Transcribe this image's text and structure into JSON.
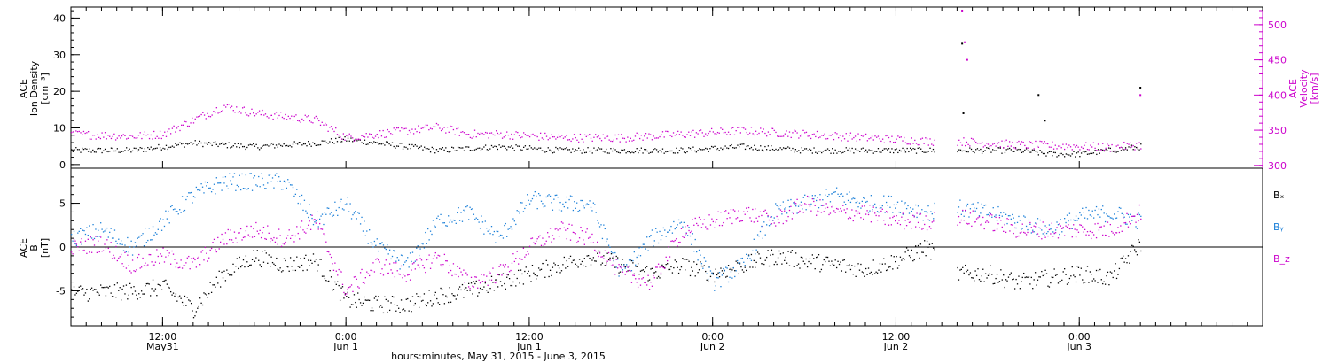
{
  "colors": {
    "frame": "#000000",
    "black_series": "#000000",
    "magenta_series": "#cc00cc",
    "blue_series": "#1a7fd8"
  },
  "chart_data": [
    {
      "type": "scatter",
      "panel": "top",
      "ylabel_left": [
        "ACE",
        "Ion Density",
        "[cm⁻³]"
      ],
      "ylabel_right": [
        "ACE",
        "Velocity",
        "[km/s]"
      ],
      "ylim_left": [
        -1,
        43
      ],
      "ylim_right": [
        296,
        525
      ],
      "yticks_left": [
        0,
        10,
        20,
        30,
        40
      ],
      "yticks_right": [
        300,
        350,
        400,
        450,
        500
      ],
      "series": [
        {
          "name": "",
          "axis": "left",
          "color": "black",
          "x": [
            "2015-05-31 06:00",
            "2015-05-31 10:00",
            "2015-05-31 14:00",
            "2015-05-31 18:00",
            "2015-05-31 22:00",
            "2015-06-01 00:00",
            "2015-06-01 02:00",
            "2015-06-01 06:00",
            "2015-06-01 10:00",
            "2015-06-01 14:00",
            "2015-06-01 18:00",
            "2015-06-01 22:00",
            "2015-06-02 02:00",
            "2015-06-02 06:00",
            "2015-06-02 10:00",
            "2015-06-02 14:00",
            "2015-06-02 16:00",
            "2015-06-02 20:00",
            "2015-06-02 22:00",
            "2015-06-03 00:00",
            "2015-06-03 02:00",
            "2015-06-03 04:00"
          ],
          "y": [
            4,
            4,
            6,
            5,
            6,
            7,
            6,
            4,
            5,
            4,
            4,
            4,
            5,
            4,
            4,
            4,
            4,
            4,
            3,
            3,
            4,
            5
          ]
        },
        {
          "name": "",
          "axis": "right",
          "color": "magenta",
          "x": [
            "2015-05-31 06:00",
            "2015-05-31 10:00",
            "2015-05-31 12:00",
            "2015-05-31 14:00",
            "2015-05-31 16:00",
            "2015-05-31 18:00",
            "2015-05-31 22:00",
            "2015-06-01 00:00",
            "2015-06-01 02:00",
            "2015-06-01 06:00",
            "2015-06-01 08:00",
            "2015-06-01 10:00",
            "2015-06-01 14:00",
            "2015-06-01 18:00",
            "2015-06-01 22:00",
            "2015-06-02 02:00",
            "2015-06-02 06:00",
            "2015-06-02 10:00",
            "2015-06-02 14:00",
            "2015-06-02 16:00",
            "2015-06-02 20:00",
            "2015-06-03 00:00",
            "2015-06-03 02:00",
            "2015-06-03 04:00"
          ],
          "y": [
            345,
            342,
            345,
            365,
            385,
            375,
            365,
            340,
            345,
            355,
            345,
            345,
            340,
            340,
            345,
            350,
            345,
            340,
            335,
            335,
            330,
            328,
            326,
            330
          ]
        },
        {
          "name": "",
          "axis": "left",
          "color": "black",
          "kind": "outliers",
          "x": [
            "2015-06-02 16:20",
            "2015-06-02 16:25",
            "2015-06-02 21:20",
            "2015-06-02 21:45",
            "2015-06-03 04:00"
          ],
          "y": [
            33,
            14,
            19,
            12,
            21
          ]
        },
        {
          "name": "",
          "axis": "right",
          "color": "magenta",
          "kind": "outliers",
          "x": [
            "2015-06-02 16:20",
            "2015-06-02 16:30",
            "2015-06-02 16:40",
            "2015-06-03 04:00"
          ],
          "y": [
            520,
            475,
            450,
            400
          ]
        }
      ]
    },
    {
      "type": "scatter",
      "panel": "bottom",
      "ylabel_left": [
        "ACE",
        "B",
        "[nT]"
      ],
      "ylim": [
        -9,
        9
      ],
      "yticks": [
        -5,
        0,
        5
      ],
      "zero_line": true,
      "legend": [
        "Bₓ",
        "Bᵧ",
        "B_z"
      ],
      "legend_placement": "right",
      "series": [
        {
          "name": "Bₓ",
          "color": "black",
          "x": [
            "2015-05-31 06:00",
            "2015-05-31 10:00",
            "2015-05-31 12:00",
            "2015-05-31 14:00",
            "2015-05-31 16:00",
            "2015-05-31 18:00",
            "2015-05-31 20:00",
            "2015-05-31 22:00",
            "2015-06-01 00:00",
            "2015-06-01 02:00",
            "2015-06-01 04:00",
            "2015-06-01 06:00",
            "2015-06-01 08:00",
            "2015-06-01 10:00",
            "2015-06-01 12:00",
            "2015-06-01 14:00",
            "2015-06-01 16:00",
            "2015-06-01 18:00",
            "2015-06-01 20:00",
            "2015-06-01 22:00",
            "2015-06-02 00:00",
            "2015-06-02 02:00",
            "2015-06-02 04:00",
            "2015-06-02 06:00",
            "2015-06-02 08:00",
            "2015-06-02 10:00",
            "2015-06-02 12:00",
            "2015-06-02 14:00",
            "2015-06-02 16:00",
            "2015-06-02 18:00",
            "2015-06-02 20:00",
            "2015-06-02 22:00",
            "2015-06-03 00:00",
            "2015-06-03 02:00",
            "2015-06-03 04:00"
          ],
          "y": [
            -5.2,
            -5,
            -4.5,
            -7,
            -3,
            -1,
            -2,
            -1.5,
            -6,
            -6.5,
            -6.5,
            -5.5,
            -5,
            -4,
            -3,
            -2,
            -1,
            -2,
            -3,
            -2,
            -3,
            -2,
            -1,
            -1.5,
            -2,
            -2.5,
            -1.5,
            0,
            -3,
            -3,
            -4,
            -3.5,
            -3,
            -3.5,
            0.5
          ]
        },
        {
          "name": "Bᵧ",
          "color": "blue",
          "x": [
            "2015-05-31 06:00",
            "2015-05-31 08:00",
            "2015-05-31 10:00",
            "2015-05-31 12:00",
            "2015-05-31 14:00",
            "2015-05-31 16:00",
            "2015-05-31 18:00",
            "2015-05-31 20:00",
            "2015-05-31 22:00",
            "2015-06-01 00:00",
            "2015-06-01 02:00",
            "2015-06-01 04:00",
            "2015-06-01 06:00",
            "2015-06-01 08:00",
            "2015-06-01 10:00",
            "2015-06-01 12:00",
            "2015-06-01 14:00",
            "2015-06-01 16:00",
            "2015-06-01 18:00",
            "2015-06-01 20:00",
            "2015-06-01 22:00",
            "2015-06-02 00:00",
            "2015-06-02 02:00",
            "2015-06-02 04:00",
            "2015-06-02 06:00",
            "2015-06-02 08:00",
            "2015-06-02 10:00",
            "2015-06-02 12:00",
            "2015-06-02 14:00",
            "2015-06-02 16:00",
            "2015-06-02 18:00",
            "2015-06-02 20:00",
            "2015-06-02 22:00",
            "2015-06-03 00:00",
            "2015-06-03 02:00",
            "2015-06-03 04:00"
          ],
          "y": [
            1,
            2,
            0,
            3,
            6,
            7.5,
            7.5,
            7.5,
            3,
            5,
            0,
            -2,
            3,
            4,
            1,
            5.5,
            5,
            5,
            -3,
            1,
            3,
            -4,
            -2,
            4,
            5,
            6,
            5,
            5,
            4,
            4.5,
            4,
            3,
            2,
            3.5,
            4,
            3
          ]
        },
        {
          "name": "B_z",
          "color": "magenta",
          "x": [
            "2015-05-31 06:00",
            "2015-05-31 08:00",
            "2015-05-31 10:00",
            "2015-05-31 12:00",
            "2015-05-31 14:00",
            "2015-05-31 16:00",
            "2015-05-31 18:00",
            "2015-05-31 20:00",
            "2015-05-31 22:00",
            "2015-06-01 00:00",
            "2015-06-01 02:00",
            "2015-06-01 04:00",
            "2015-06-01 06:00",
            "2015-06-01 08:00",
            "2015-06-01 10:00",
            "2015-06-01 12:00",
            "2015-06-01 14:00",
            "2015-06-01 16:00",
            "2015-06-01 18:00",
            "2015-06-01 20:00",
            "2015-06-01 22:00",
            "2015-06-02 00:00",
            "2015-06-02 02:00",
            "2015-06-02 04:00",
            "2015-06-02 06:00",
            "2015-06-02 08:00",
            "2015-06-02 10:00",
            "2015-06-02 12:00",
            "2015-06-02 14:00",
            "2015-06-02 16:00",
            "2015-06-02 18:00",
            "2015-06-02 20:00",
            "2015-06-02 22:00",
            "2015-06-03 00:00",
            "2015-06-03 02:00",
            "2015-06-03 04:00"
          ],
          "y": [
            0,
            0.5,
            -2,
            -1,
            -2,
            1,
            2,
            1,
            3,
            -5,
            -2,
            -3,
            -1,
            -4,
            -3,
            0,
            2,
            1,
            -3,
            -4,
            2,
            3,
            4,
            3,
            5,
            4,
            4,
            3,
            3,
            3.5,
            3,
            2,
            2,
            2,
            2,
            4
          ]
        }
      ]
    }
  ],
  "xaxis": {
    "range": [
      "2015-05-31 06:00",
      "2015-06-03 12:00"
    ],
    "major_ticks": [
      {
        "time": "2015-05-31 12:00",
        "line1": "12:00",
        "line2": "May31"
      },
      {
        "time": "2015-06-01 00:00",
        "line1": "0:00",
        "line2": "Jun 1"
      },
      {
        "time": "2015-06-01 12:00",
        "line1": "12:00",
        "line2": "Jun 1"
      },
      {
        "time": "2015-06-02 00:00",
        "line1": "0:00",
        "line2": "Jun 2"
      },
      {
        "time": "2015-06-02 12:00",
        "line1": "12:00",
        "line2": "Jun 2"
      },
      {
        "time": "2015-06-03 00:00",
        "line1": "0:00",
        "line2": "Jun 3"
      }
    ],
    "xlabel": "hours:minutes, May 31, 2015 - June  3, 2015"
  }
}
